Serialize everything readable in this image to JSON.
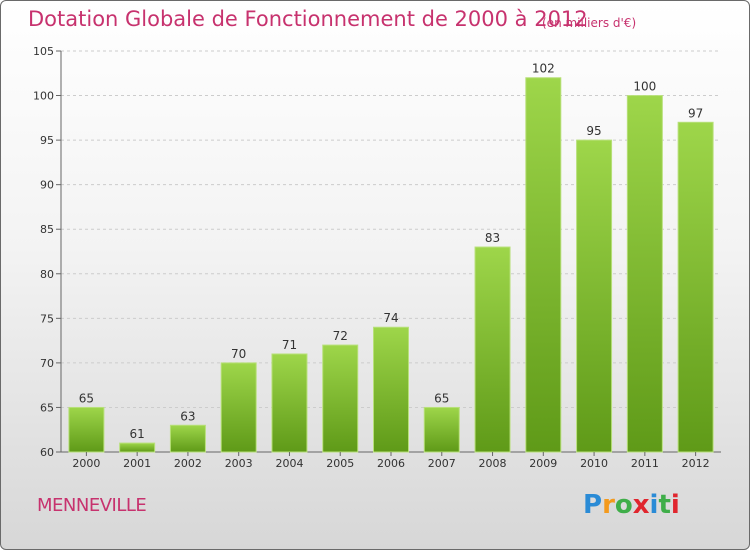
{
  "title": "Dotation Globale de Fonctionnement de 2000 à 2012",
  "unit_note": "(en milliers d'€)",
  "town": "MENNEVILLE",
  "logo_text": "Proxiti",
  "colors": {
    "title": "#c7326e",
    "bar_top": "#9ed64a",
    "bar_bottom": "#5f9a18",
    "grid": "#cccccc"
  },
  "chart_data": {
    "type": "bar",
    "categories": [
      "2000",
      "2001",
      "2002",
      "2003",
      "2004",
      "2005",
      "2006",
      "2007",
      "2008",
      "2009",
      "2010",
      "2011",
      "2012"
    ],
    "values": [
      65,
      61,
      63,
      70,
      71,
      72,
      74,
      65,
      83,
      102,
      95,
      100,
      97
    ],
    "title": "Dotation Globale de Fonctionnement de 2000 à 2012",
    "ylim": [
      60,
      105
    ],
    "yticks": [
      60,
      65,
      70,
      75,
      80,
      85,
      90,
      95,
      100,
      105
    ],
    "grid": "horizontal dashed",
    "legend": "none",
    "data_labels": true
  }
}
